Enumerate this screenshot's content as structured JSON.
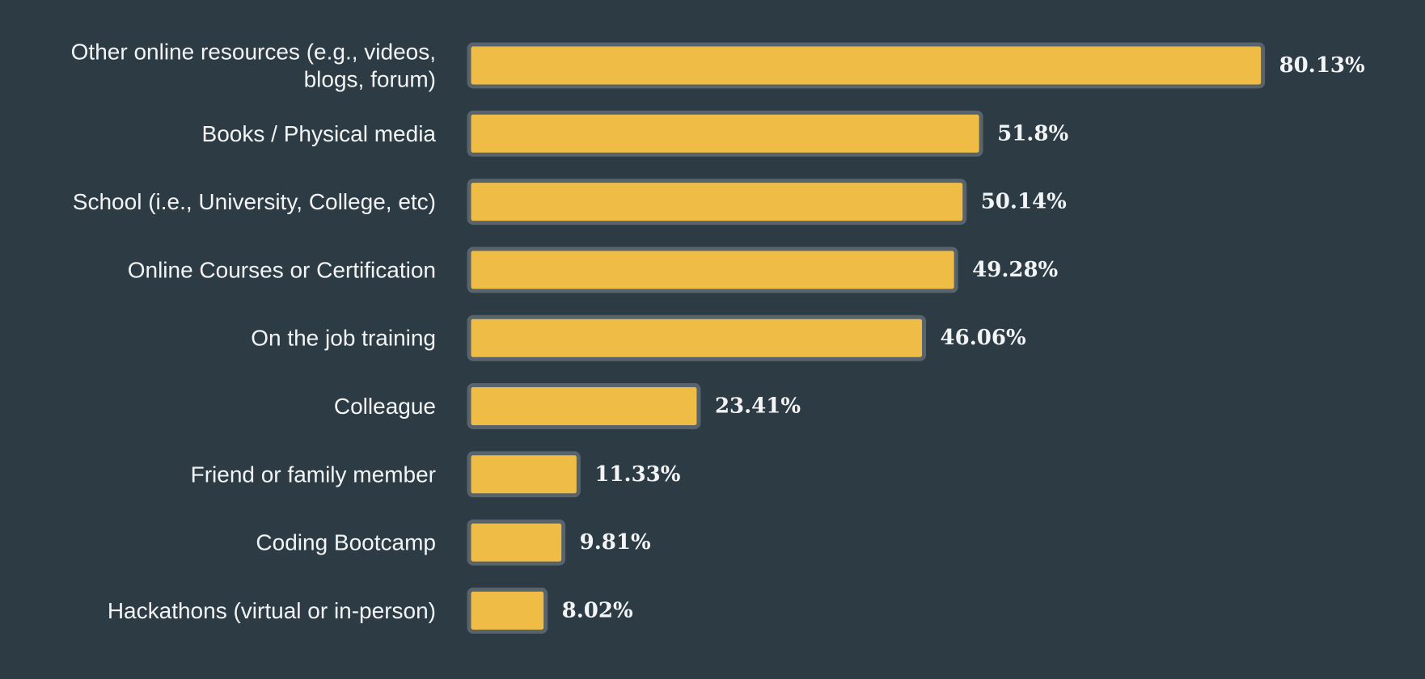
{
  "chart_data": {
    "type": "bar",
    "orientation": "horizontal",
    "categories": [
      "Other online resources (e.g., videos, blogs, forum)",
      "Books / Physical media",
      "School (i.e., University, College, etc)",
      "Online Courses or Certification",
      "On the job training",
      "Colleague",
      "Friend or family member",
      "Coding Bootcamp",
      "Hackathons (virtual or in-person)"
    ],
    "category_lines": [
      [
        "Other online resources (e.g., videos,",
        "blogs, forum)"
      ],
      [
        "Books / Physical media"
      ],
      [
        "School (i.e., University, College, etc)"
      ],
      [
        "Online Courses or Certification"
      ],
      [
        "On the job training"
      ],
      [
        "Colleague"
      ],
      [
        "Friend or family member"
      ],
      [
        "Coding Bootcamp"
      ],
      [
        "Hackathons (virtual or in-person)"
      ]
    ],
    "values": [
      80.13,
      51.8,
      50.14,
      49.28,
      46.06,
      23.41,
      11.33,
      9.81,
      8.02
    ],
    "value_labels": [
      "80.13%",
      "51.8%",
      "50.14%",
      "49.28%",
      "46.06%",
      "23.41%",
      "11.33%",
      "9.81%",
      "8.02%"
    ],
    "unit": "%",
    "title": "",
    "xlabel": "",
    "ylabel": "",
    "xlim": [
      0,
      100
    ],
    "grid": false,
    "legend": "none",
    "colors": {
      "background": "#2c3b44",
      "bar_fill": "#efbd45",
      "bar_stroke": "#59636b",
      "text": "#f2f4f5"
    }
  }
}
